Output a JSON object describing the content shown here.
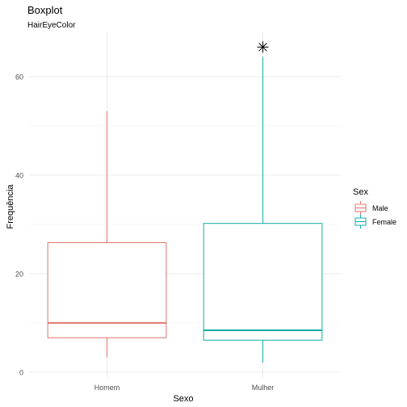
{
  "chart_data": {
    "type": "boxplot",
    "title": "Boxplot",
    "subtitle": "HairEyeColor",
    "xlabel": "Sexo",
    "ylabel": "Frequência",
    "ylim": [
      -1,
      69
    ],
    "yticks": [
      0,
      20,
      40,
      60
    ],
    "categories": [
      "Homem",
      "Mulher"
    ],
    "legend": {
      "title": "Sex",
      "position": "right",
      "entries": [
        "Male",
        "Female"
      ]
    },
    "series": [
      {
        "name": "Male",
        "category": "Homem",
        "color": "#E0756D",
        "whisker_low": 3,
        "q1": 7,
        "median": 10,
        "q3": 26.3,
        "whisker_high": 53,
        "outliers": []
      },
      {
        "name": "Female",
        "category": "Mulher",
        "color": "#14ADA5",
        "whisker_low": 2,
        "q1": 6.5,
        "median": 8.5,
        "q3": 30.2,
        "whisker_high": 64,
        "outliers": [
          66
        ]
      }
    ],
    "grid": true
  }
}
